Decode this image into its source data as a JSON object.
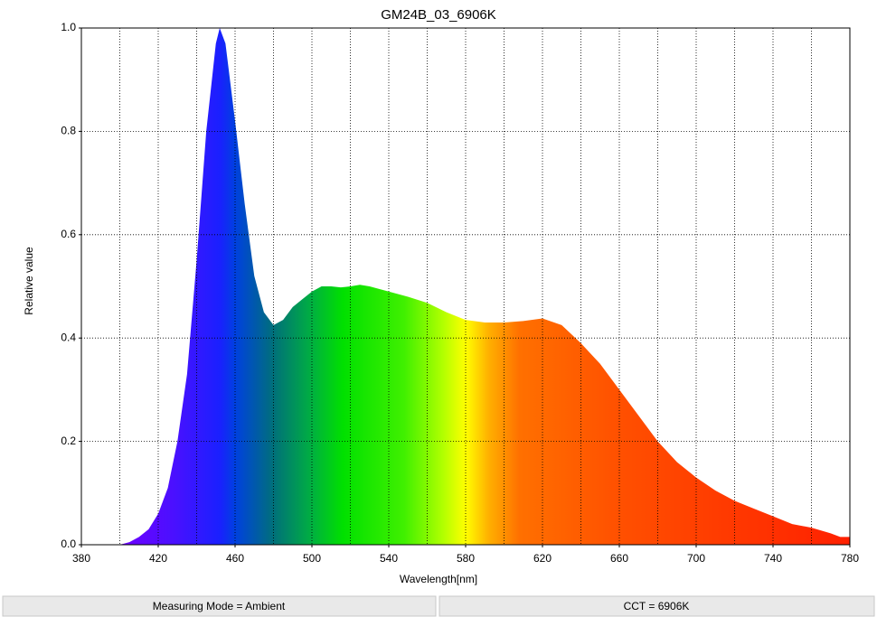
{
  "chart_data": {
    "type": "area",
    "title": "GM24B_03_6906K",
    "x_label": "Wavelength[nm]",
    "y_label": "Relative value",
    "x": [
      380,
      390,
      400,
      405,
      410,
      415,
      420,
      425,
      430,
      435,
      440,
      445,
      450,
      452,
      455,
      460,
      465,
      470,
      475,
      480,
      485,
      490,
      495,
      500,
      505,
      510,
      515,
      520,
      525,
      530,
      540,
      550,
      560,
      570,
      580,
      590,
      600,
      610,
      620,
      630,
      640,
      650,
      660,
      670,
      680,
      690,
      700,
      710,
      720,
      730,
      740,
      750,
      760,
      770,
      775,
      780
    ],
    "values": [
      0,
      0,
      0,
      0.005,
      0.015,
      0.03,
      0.06,
      0.11,
      0.2,
      0.33,
      0.55,
      0.8,
      0.97,
      1.0,
      0.97,
      0.82,
      0.66,
      0.52,
      0.45,
      0.425,
      0.435,
      0.46,
      0.475,
      0.49,
      0.5,
      0.5,
      0.498,
      0.5,
      0.503,
      0.5,
      0.49,
      0.48,
      0.468,
      0.45,
      0.435,
      0.43,
      0.43,
      0.433,
      0.438,
      0.425,
      0.39,
      0.35,
      0.3,
      0.25,
      0.2,
      0.16,
      0.13,
      0.105,
      0.085,
      0.07,
      0.055,
      0.04,
      0.033,
      0.022,
      0.015,
      0.015
    ],
    "xlim": [
      380,
      780
    ],
    "ylim": [
      0,
      1
    ],
    "xticks": [
      380,
      420,
      460,
      500,
      540,
      580,
      620,
      660,
      700,
      740,
      780
    ],
    "x_minor_grid": [
      400,
      440,
      480,
      520,
      560,
      600,
      640,
      680,
      720,
      760
    ],
    "yticks": [
      {
        "value": 0,
        "label": "0.0"
      },
      {
        "value": 0.2,
        "label": "0.2"
      },
      {
        "value": 0.4,
        "label": "0.4"
      },
      {
        "value": 0.6,
        "label": "0.6"
      },
      {
        "value": 0.8,
        "label": "0.8"
      },
      {
        "value": 1,
        "label": "1.0"
      }
    ],
    "grid": true
  },
  "status_bar": [
    "Measuring Mode = Ambient",
    "CCT = 6906K"
  ]
}
